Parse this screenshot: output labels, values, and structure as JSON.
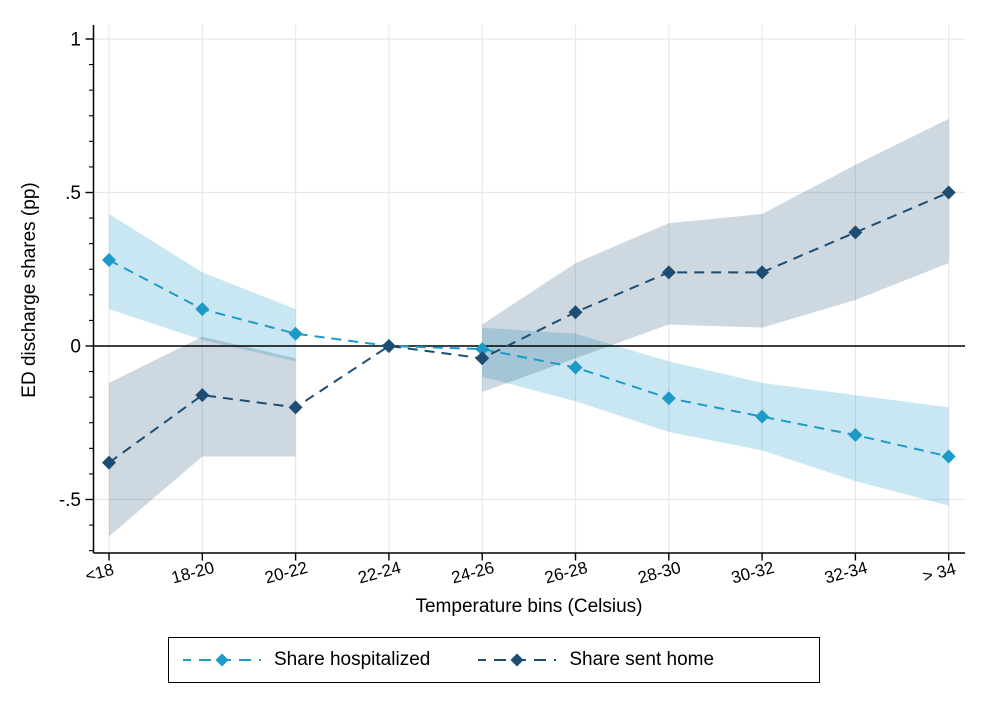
{
  "figure": {
    "background": "#ffffff",
    "axis_color": "#000000",
    "grid_color": "#e8e8e8",
    "zero_line_color": "#000000",
    "text_color": "#000000"
  },
  "chart_data": {
    "type": "line",
    "title": "",
    "xlabel": "Temperature bins (Celsius)",
    "ylabel": "ED discharge shares (pp)",
    "categories": [
      "<18",
      "18-20",
      "20-22",
      "22-24",
      "24-26",
      "26-28",
      "28-30",
      "30-32",
      "32-34",
      "> 34"
    ],
    "reference_bin": "22-24",
    "y_ticks": [
      {
        "value": 1,
        "label": "1"
      },
      {
        "value": 0.5,
        "label": ".5"
      },
      {
        "value": 0,
        "label": "0"
      },
      {
        "value": -0.5,
        "label": "-.5"
      }
    ],
    "ylim": [
      -0.67,
      1.04
    ],
    "grid": true,
    "zero_line": true,
    "legend_position": "bottom-center",
    "series": [
      {
        "name": "Share hospitalized",
        "color": "#1e9ac9",
        "band_fill": "rgba(30,154,201,0.24)",
        "marker": "diamond",
        "line_style": "dashed",
        "values": [
          0.28,
          0.12,
          0.04,
          0.0,
          -0.01,
          -0.07,
          -0.17,
          -0.23,
          -0.29,
          -0.36
        ],
        "ci_high": [
          0.43,
          0.24,
          0.12,
          0.0,
          0.06,
          0.04,
          -0.05,
          -0.12,
          -0.16,
          -0.2
        ],
        "ci_low": [
          0.12,
          0.02,
          -0.05,
          0.0,
          -0.1,
          -0.18,
          -0.28,
          -0.34,
          -0.44,
          -0.52
        ]
      },
      {
        "name": "Share sent home",
        "color": "#1d4d72",
        "band_fill": "rgba(29,77,114,0.22)",
        "marker": "diamond",
        "line_style": "dashed",
        "values": [
          -0.38,
          -0.16,
          -0.2,
          0.0,
          -0.04,
          0.11,
          0.24,
          0.24,
          0.37,
          0.5
        ],
        "ci_high": [
          -0.12,
          0.03,
          -0.04,
          0.0,
          0.07,
          0.27,
          0.4,
          0.43,
          0.59,
          0.74
        ],
        "ci_low": [
          -0.62,
          -0.36,
          -0.36,
          0.0,
          -0.15,
          -0.04,
          0.07,
          0.06,
          0.15,
          0.27
        ]
      }
    ]
  }
}
